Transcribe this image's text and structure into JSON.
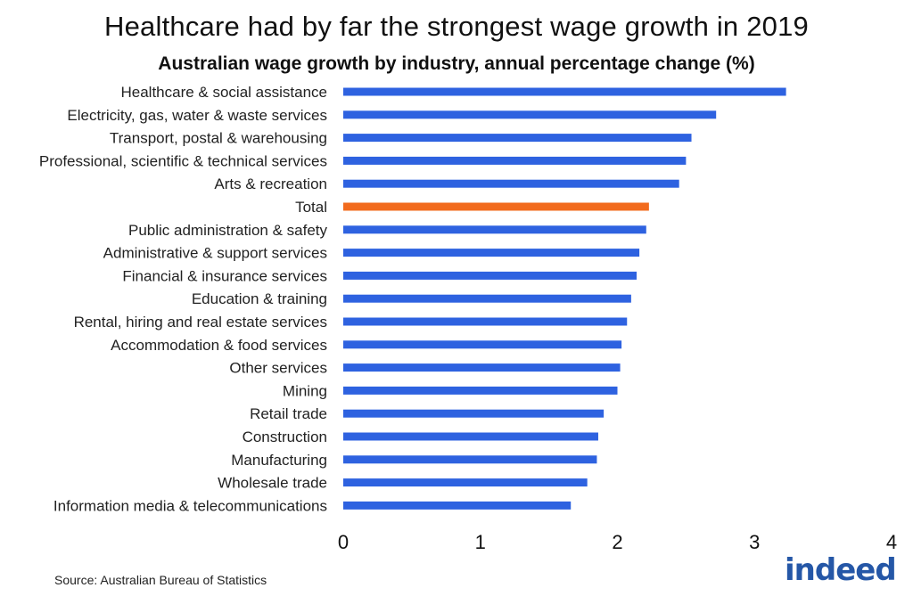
{
  "chart_data": {
    "type": "bar",
    "orientation": "horizontal",
    "title": "Healthcare had by far the strongest wage growth in 2019",
    "subtitle": "Australian wage growth by industry, annual percentage change (%)",
    "categories": [
      "Healthcare & social assistance",
      "Electricity, gas, water & waste services",
      "Transport, postal & warehousing",
      "Professional, scientific & technical services ",
      "Arts & recreation",
      "Total",
      "Public administration & safety",
      "Administrative & support services",
      "Financial & insurance services",
      "Education & training ",
      "Rental, hiring and real estate services",
      "Accommodation & food services",
      "Other services",
      "Mining",
      "Retail  trade",
      "Construction",
      "Manufacturing",
      "Wholesale trade",
      "Information media & telecommunications"
    ],
    "values": [
      3.23,
      2.72,
      2.54,
      2.5,
      2.45,
      2.23,
      2.21,
      2.16,
      2.14,
      2.1,
      2.07,
      2.03,
      2.02,
      2.0,
      1.9,
      1.86,
      1.85,
      1.78,
      1.66
    ],
    "highlight_category": "Total",
    "xlim": [
      0,
      4
    ],
    "xticks": [
      0,
      1,
      2,
      3,
      4
    ],
    "xlabel": "",
    "ylabel": "",
    "grid": false,
    "colors": {
      "bar": "#2e62e0",
      "highlight": "#f26b1d"
    }
  },
  "footer": {
    "source": "Source: Australian Bureau of Statistics",
    "logo_text": "indeed"
  }
}
